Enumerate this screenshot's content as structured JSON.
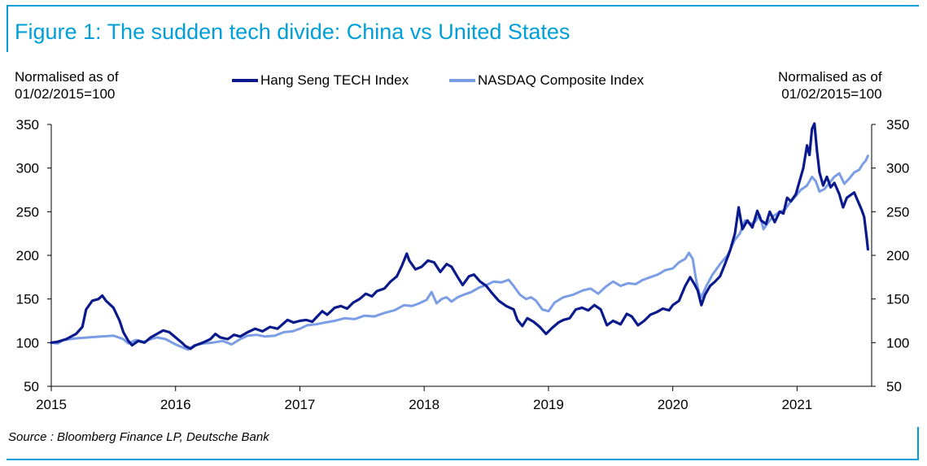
{
  "figure": {
    "title": "Figure 1: The sudden tech divide: China vs United States",
    "source": "Source : Bloomberg Finance LP, Deutsche Bank",
    "accent_color": "#009fda"
  },
  "chart_data": {
    "type": "line",
    "title": "Figure 1: The sudden tech divide: China vs United States",
    "ylabel_left": "Normalised as  of 01/02/2015=100",
    "ylabel_right": "Normalised as  of 01/02/2015=100",
    "ylabel_left_lines": [
      "Normalised as  of",
      "01/02/2015=100"
    ],
    "ylabel_right_lines": [
      "Normalised as  of",
      "01/02/2015=100"
    ],
    "xlabel": "",
    "xlim": [
      2015.0,
      2021.6
    ],
    "ylim": [
      50,
      350
    ],
    "x_ticks": [
      2015,
      2016,
      2017,
      2018,
      2019,
      2020,
      2021
    ],
    "x_tick_labels": [
      "2015",
      "2016",
      "2017",
      "2018",
      "2019",
      "2020",
      "2021"
    ],
    "y_ticks": [
      50,
      100,
      150,
      200,
      250,
      300,
      350
    ],
    "y_tick_labels": [
      "50",
      "100",
      "150",
      "200",
      "250",
      "300",
      "350"
    ],
    "grid": false,
    "legend": "top-center",
    "series": [
      {
        "name": "Hang Seng TECH Index",
        "color": "#0a1a8c",
        "points": [
          [
            2015.0,
            100
          ],
          [
            2015.05,
            101
          ],
          [
            2015.12,
            104
          ],
          [
            2015.2,
            110
          ],
          [
            2015.25,
            118
          ],
          [
            2015.28,
            138
          ],
          [
            2015.33,
            148
          ],
          [
            2015.38,
            150
          ],
          [
            2015.41,
            154
          ],
          [
            2015.44,
            148
          ],
          [
            2015.5,
            140
          ],
          [
            2015.55,
            125
          ],
          [
            2015.58,
            112
          ],
          [
            2015.62,
            102
          ],
          [
            2015.65,
            97
          ],
          [
            2015.7,
            102
          ],
          [
            2015.75,
            100
          ],
          [
            2015.8,
            106
          ],
          [
            2015.85,
            110
          ],
          [
            2015.9,
            114
          ],
          [
            2015.95,
            112
          ],
          [
            2016.0,
            106
          ],
          [
            2016.05,
            100
          ],
          [
            2016.08,
            96
          ],
          [
            2016.12,
            93
          ],
          [
            2016.16,
            97
          ],
          [
            2016.22,
            100
          ],
          [
            2016.28,
            104
          ],
          [
            2016.32,
            110
          ],
          [
            2016.36,
            106
          ],
          [
            2016.42,
            104
          ],
          [
            2016.47,
            109
          ],
          [
            2016.52,
            107
          ],
          [
            2016.58,
            112
          ],
          [
            2016.64,
            116
          ],
          [
            2016.7,
            113
          ],
          [
            2016.76,
            118
          ],
          [
            2016.82,
            116
          ],
          [
            2016.86,
            121
          ],
          [
            2016.9,
            126
          ],
          [
            2016.95,
            123
          ],
          [
            2017.0,
            125
          ],
          [
            2017.05,
            126
          ],
          [
            2017.1,
            124
          ],
          [
            2017.14,
            130
          ],
          [
            2017.18,
            136
          ],
          [
            2017.22,
            132
          ],
          [
            2017.28,
            140
          ],
          [
            2017.33,
            142
          ],
          [
            2017.38,
            139
          ],
          [
            2017.43,
            146
          ],
          [
            2017.48,
            150
          ],
          [
            2017.53,
            156
          ],
          [
            2017.58,
            153
          ],
          [
            2017.62,
            159
          ],
          [
            2017.68,
            162
          ],
          [
            2017.73,
            170
          ],
          [
            2017.78,
            176
          ],
          [
            2017.82,
            188
          ],
          [
            2017.86,
            202
          ],
          [
            2017.88,
            194
          ],
          [
            2017.93,
            184
          ],
          [
            2017.98,
            187
          ],
          [
            2018.03,
            194
          ],
          [
            2018.08,
            192
          ],
          [
            2018.13,
            181
          ],
          [
            2018.18,
            190
          ],
          [
            2018.22,
            187
          ],
          [
            2018.27,
            175
          ],
          [
            2018.31,
            166
          ],
          [
            2018.36,
            176
          ],
          [
            2018.4,
            178
          ],
          [
            2018.45,
            170
          ],
          [
            2018.5,
            165
          ],
          [
            2018.55,
            156
          ],
          [
            2018.6,
            148
          ],
          [
            2018.66,
            142
          ],
          [
            2018.72,
            138
          ],
          [
            2018.75,
            126
          ],
          [
            2018.79,
            119
          ],
          [
            2018.83,
            128
          ],
          [
            2018.88,
            124
          ],
          [
            2018.93,
            118
          ],
          [
            2018.98,
            110
          ],
          [
            2019.03,
            117
          ],
          [
            2019.08,
            123
          ],
          [
            2019.12,
            126
          ],
          [
            2019.17,
            128
          ],
          [
            2019.22,
            138
          ],
          [
            2019.27,
            140
          ],
          [
            2019.32,
            137
          ],
          [
            2019.37,
            143
          ],
          [
            2019.42,
            138
          ],
          [
            2019.47,
            120
          ],
          [
            2019.52,
            125
          ],
          [
            2019.58,
            121
          ],
          [
            2019.63,
            133
          ],
          [
            2019.67,
            130
          ],
          [
            2019.72,
            120
          ],
          [
            2019.77,
            125
          ],
          [
            2019.82,
            132
          ],
          [
            2019.87,
            135
          ],
          [
            2019.92,
            139
          ],
          [
            2019.97,
            137
          ],
          [
            2020.0,
            143
          ],
          [
            2020.05,
            148
          ],
          [
            2020.1,
            165
          ],
          [
            2020.14,
            175
          ],
          [
            2020.17,
            168
          ],
          [
            2020.2,
            160
          ],
          [
            2020.23,
            143
          ],
          [
            2020.26,
            155
          ],
          [
            2020.3,
            165
          ],
          [
            2020.34,
            170
          ],
          [
            2020.38,
            176
          ],
          [
            2020.42,
            190
          ],
          [
            2020.46,
            205
          ],
          [
            2020.5,
            225
          ],
          [
            2020.53,
            255
          ],
          [
            2020.56,
            230
          ],
          [
            2020.6,
            240
          ],
          [
            2020.64,
            232
          ],
          [
            2020.68,
            251
          ],
          [
            2020.71,
            240
          ],
          [
            2020.75,
            236
          ],
          [
            2020.78,
            250
          ],
          [
            2020.82,
            238
          ],
          [
            2020.86,
            250
          ],
          [
            2020.89,
            248
          ],
          [
            2020.92,
            266
          ],
          [
            2020.95,
            262
          ],
          [
            2020.99,
            270
          ],
          [
            2021.02,
            285
          ],
          [
            2021.05,
            300
          ],
          [
            2021.08,
            326
          ],
          [
            2021.1,
            315
          ],
          [
            2021.12,
            345
          ],
          [
            2021.14,
            351
          ],
          [
            2021.16,
            320
          ],
          [
            2021.18,
            295
          ],
          [
            2021.21,
            280
          ],
          [
            2021.24,
            290
          ],
          [
            2021.27,
            278
          ],
          [
            2021.3,
            283
          ],
          [
            2021.34,
            270
          ],
          [
            2021.37,
            255
          ],
          [
            2021.4,
            266
          ],
          [
            2021.43,
            269
          ],
          [
            2021.46,
            272
          ],
          [
            2021.49,
            262
          ],
          [
            2021.52,
            252
          ],
          [
            2021.54,
            244
          ],
          [
            2021.56,
            220
          ],
          [
            2021.57,
            207
          ]
        ]
      },
      {
        "name": "NASDAQ Composite Index",
        "color": "#7b9de6",
        "points": [
          [
            2015.0,
            100
          ],
          [
            2015.05,
            99
          ],
          [
            2015.1,
            103
          ],
          [
            2015.2,
            105
          ],
          [
            2015.3,
            106
          ],
          [
            2015.4,
            107
          ],
          [
            2015.5,
            108
          ],
          [
            2015.58,
            104
          ],
          [
            2015.62,
            99
          ],
          [
            2015.68,
            103
          ],
          [
            2015.75,
            101
          ],
          [
            2015.8,
            104
          ],
          [
            2015.85,
            106
          ],
          [
            2015.92,
            104
          ],
          [
            2016.0,
            98
          ],
          [
            2016.05,
            95
          ],
          [
            2016.1,
            92
          ],
          [
            2016.15,
            97
          ],
          [
            2016.22,
            99
          ],
          [
            2016.3,
            100
          ],
          [
            2016.38,
            102
          ],
          [
            2016.45,
            98
          ],
          [
            2016.52,
            104
          ],
          [
            2016.58,
            108
          ],
          [
            2016.65,
            109
          ],
          [
            2016.72,
            107
          ],
          [
            2016.8,
            108
          ],
          [
            2016.87,
            112
          ],
          [
            2016.94,
            113
          ],
          [
            2017.0,
            116
          ],
          [
            2017.06,
            120
          ],
          [
            2017.13,
            121
          ],
          [
            2017.2,
            123
          ],
          [
            2017.28,
            125
          ],
          [
            2017.36,
            128
          ],
          [
            2017.44,
            127
          ],
          [
            2017.52,
            131
          ],
          [
            2017.6,
            130
          ],
          [
            2017.68,
            134
          ],
          [
            2017.76,
            137
          ],
          [
            2017.84,
            143
          ],
          [
            2017.9,
            142
          ],
          [
            2017.96,
            145
          ],
          [
            2018.02,
            149
          ],
          [
            2018.06,
            158
          ],
          [
            2018.1,
            145
          ],
          [
            2018.14,
            150
          ],
          [
            2018.18,
            152
          ],
          [
            2018.22,
            147
          ],
          [
            2018.27,
            152
          ],
          [
            2018.32,
            155
          ],
          [
            2018.38,
            158
          ],
          [
            2018.44,
            163
          ],
          [
            2018.5,
            166
          ],
          [
            2018.56,
            170
          ],
          [
            2018.62,
            169
          ],
          [
            2018.68,
            172
          ],
          [
            2018.72,
            165
          ],
          [
            2018.77,
            155
          ],
          [
            2018.82,
            150
          ],
          [
            2018.86,
            152
          ],
          [
            2018.9,
            148
          ],
          [
            2018.95,
            138
          ],
          [
            2019.0,
            136
          ],
          [
            2019.05,
            146
          ],
          [
            2019.12,
            152
          ],
          [
            2019.2,
            155
          ],
          [
            2019.28,
            160
          ],
          [
            2019.34,
            162
          ],
          [
            2019.4,
            156
          ],
          [
            2019.46,
            164
          ],
          [
            2019.52,
            170
          ],
          [
            2019.58,
            165
          ],
          [
            2019.64,
            168
          ],
          [
            2019.7,
            167
          ],
          [
            2019.76,
            172
          ],
          [
            2019.82,
            175
          ],
          [
            2019.88,
            178
          ],
          [
            2019.94,
            183
          ],
          [
            2020.0,
            185
          ],
          [
            2020.05,
            192
          ],
          [
            2020.1,
            196
          ],
          [
            2020.13,
            203
          ],
          [
            2020.16,
            196
          ],
          [
            2020.19,
            170
          ],
          [
            2020.21,
            158
          ],
          [
            2020.23,
            152
          ],
          [
            2020.27,
            165
          ],
          [
            2020.32,
            178
          ],
          [
            2020.38,
            190
          ],
          [
            2020.44,
            200
          ],
          [
            2020.5,
            218
          ],
          [
            2020.54,
            225
          ],
          [
            2020.58,
            240
          ],
          [
            2020.62,
            236
          ],
          [
            2020.66,
            238
          ],
          [
            2020.7,
            246
          ],
          [
            2020.73,
            230
          ],
          [
            2020.77,
            238
          ],
          [
            2020.81,
            245
          ],
          [
            2020.86,
            250
          ],
          [
            2020.9,
            252
          ],
          [
            2020.94,
            260
          ],
          [
            2020.99,
            268
          ],
          [
            2021.03,
            275
          ],
          [
            2021.08,
            280
          ],
          [
            2021.12,
            290
          ],
          [
            2021.15,
            285
          ],
          [
            2021.18,
            273
          ],
          [
            2021.22,
            276
          ],
          [
            2021.26,
            283
          ],
          [
            2021.3,
            290
          ],
          [
            2021.34,
            294
          ],
          [
            2021.38,
            282
          ],
          [
            2021.42,
            288
          ],
          [
            2021.46,
            295
          ],
          [
            2021.5,
            298
          ],
          [
            2021.53,
            305
          ],
          [
            2021.55,
            308
          ],
          [
            2021.57,
            314
          ]
        ]
      }
    ]
  }
}
